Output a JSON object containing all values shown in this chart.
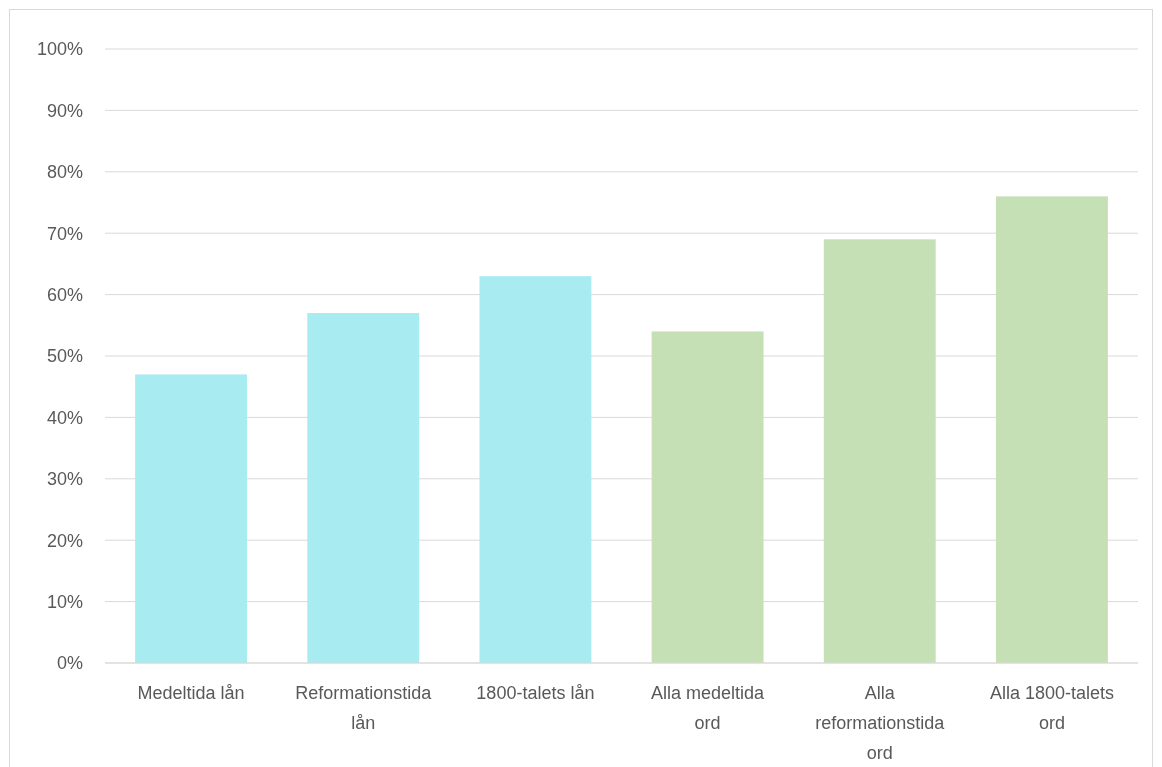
{
  "chart_data": {
    "type": "bar",
    "categories": [
      "Medeltida lån",
      "Reformationstida lån",
      "1800-talets lån",
      "Alla medeltida ord",
      "Alla reformationstida ord",
      "Alla 1800-talets ord"
    ],
    "values": [
      47,
      57,
      63,
      54,
      69,
      76
    ],
    "colors": [
      "#a8ebf0",
      "#a8ebf0",
      "#a8ebf0",
      "#c5e0b4",
      "#c5e0b4",
      "#c5e0b4"
    ],
    "ylim": [
      0,
      100
    ],
    "yticks": [
      {
        "value": 0,
        "label": "0%"
      },
      {
        "value": 10,
        "label": "10%"
      },
      {
        "value": 20,
        "label": "20%"
      },
      {
        "value": 30,
        "label": "30%"
      },
      {
        "value": 40,
        "label": "40%"
      },
      {
        "value": 50,
        "label": "50%"
      },
      {
        "value": 60,
        "label": "60%"
      },
      {
        "value": 70,
        "label": "70%"
      },
      {
        "value": 80,
        "label": "80%"
      },
      {
        "value": 90,
        "label": "90%"
      },
      {
        "value": 100,
        "label": "100%"
      }
    ],
    "grid": "y"
  }
}
